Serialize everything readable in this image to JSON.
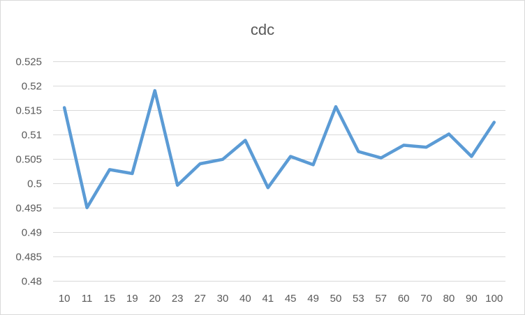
{
  "chart_data": {
    "type": "line",
    "title": "cdc",
    "xlabel": "",
    "ylabel": "",
    "categories": [
      "10",
      "11",
      "15",
      "19",
      "20",
      "23",
      "27",
      "30",
      "40",
      "41",
      "45",
      "49",
      "50",
      "53",
      "57",
      "60",
      "70",
      "80",
      "90",
      "100"
    ],
    "series": [
      {
        "values": [
          0.5155,
          0.495,
          0.5028,
          0.502,
          0.519,
          0.4996,
          0.504,
          0.5049,
          0.5088,
          0.4991,
          0.5055,
          0.5038,
          0.5157,
          0.5065,
          0.5052,
          0.5078,
          0.5074,
          0.5101,
          0.5055,
          0.5125
        ],
        "color": "#5b9bd5"
      }
    ],
    "yticks": [
      "0.48",
      "0.485",
      "0.49",
      "0.495",
      "0.5",
      "0.505",
      "0.51",
      "0.515",
      "0.52",
      "0.525"
    ],
    "ylim": [
      0.48,
      0.525
    ],
    "grid": true,
    "legend": "none",
    "gridline_color": "#d9d9d9"
  }
}
